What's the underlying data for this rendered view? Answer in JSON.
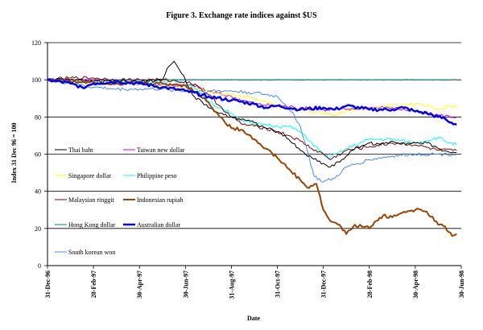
{
  "chart_data": {
    "type": "line",
    "title": "Figure 3. Exchange rate indices against $US",
    "xlabel": "Date",
    "ylabel": "Index 31 Dec 96 = 100",
    "ylim": [
      0,
      120
    ],
    "yticks": [
      0,
      20,
      40,
      60,
      80,
      100,
      120
    ],
    "x_tick_labels": [
      "31-Dec-96",
      "28-Feb-97",
      "30-Apr-97",
      "30-Jun-97",
      "31-Aug-97",
      "31-Oct-97",
      "31-Dec-97",
      "28-Feb-98",
      "30-Apr-98",
      "30-Jun-98"
    ],
    "xlim_months": [
      0,
      18
    ],
    "grid": "horizontal",
    "legend_position": "inside-left",
    "x_unit": "months since 31-Dec-96",
    "series": [
      {
        "name": "Thai baht",
        "color": "#000000",
        "width": 1,
        "points": [
          [
            0,
            100
          ],
          [
            1,
            100
          ],
          [
            2,
            99
          ],
          [
            3,
            99
          ],
          [
            4,
            99
          ],
          [
            5,
            100
          ],
          [
            5.2,
            106
          ],
          [
            5.5,
            110
          ],
          [
            6,
            100
          ],
          [
            6.3,
            92
          ],
          [
            7,
            85
          ],
          [
            7.5,
            82
          ],
          [
            8,
            80
          ],
          [
            8.5,
            79
          ],
          [
            9,
            77
          ],
          [
            9.5,
            74
          ],
          [
            10,
            72
          ],
          [
            10.5,
            68
          ],
          [
            11,
            62
          ],
          [
            11.5,
            58
          ],
          [
            12,
            55
          ],
          [
            12.3,
            53
          ],
          [
            12.8,
            57
          ],
          [
            13,
            59
          ],
          [
            13.5,
            64
          ],
          [
            14,
            66
          ],
          [
            14.5,
            65
          ],
          [
            15,
            67
          ],
          [
            15.5,
            66
          ],
          [
            16,
            66
          ],
          [
            16.5,
            66
          ],
          [
            17,
            63
          ],
          [
            17.5,
            61
          ],
          [
            17.8,
            61
          ]
        ]
      },
      {
        "name": "Taiwan new dollar",
        "color": "#cc00cc",
        "width": 1,
        "points": [
          [
            0,
            100
          ],
          [
            1,
            100
          ],
          [
            2,
            100
          ],
          [
            3,
            99
          ],
          [
            4,
            98
          ],
          [
            5,
            97
          ],
          [
            6,
            97
          ],
          [
            6.5,
            97
          ],
          [
            6.7,
            95
          ],
          [
            7,
            94
          ],
          [
            8,
            91
          ],
          [
            9,
            87
          ],
          [
            10,
            86
          ],
          [
            11,
            85
          ],
          [
            12,
            84
          ],
          [
            13,
            84
          ],
          [
            14,
            85
          ],
          [
            15,
            85
          ],
          [
            16,
            83
          ],
          [
            17,
            81
          ],
          [
            17.8,
            80
          ]
        ]
      },
      {
        "name": "Singapore dollar",
        "color": "#ffff00",
        "width": 1,
        "points": [
          [
            0,
            100
          ],
          [
            1,
            99
          ],
          [
            2,
            98
          ],
          [
            3,
            98
          ],
          [
            4,
            98
          ],
          [
            5,
            97
          ],
          [
            6,
            96
          ],
          [
            7,
            94
          ],
          [
            8,
            92
          ],
          [
            9,
            90
          ],
          [
            10,
            86
          ],
          [
            11,
            84
          ],
          [
            12,
            82
          ],
          [
            12.5,
            81
          ],
          [
            13,
            83
          ],
          [
            14,
            85
          ],
          [
            15,
            86
          ],
          [
            16,
            87
          ],
          [
            17,
            84
          ],
          [
            17.5,
            86
          ],
          [
            17.8,
            85
          ]
        ]
      },
      {
        "name": "Philippine peso",
        "color": "#00ffff",
        "width": 1,
        "points": [
          [
            0,
            100
          ],
          [
            1,
            99
          ],
          [
            2,
            99
          ],
          [
            3,
            99
          ],
          [
            4,
            99
          ],
          [
            5,
            99
          ],
          [
            6,
            99
          ],
          [
            6.5,
            95
          ],
          [
            7,
            88
          ],
          [
            7.5,
            85
          ],
          [
            8,
            82
          ],
          [
            8.5,
            78
          ],
          [
            9,
            76
          ],
          [
            9.5,
            76
          ],
          [
            10,
            75
          ],
          [
            10.5,
            75
          ],
          [
            11,
            72
          ],
          [
            11.5,
            66
          ],
          [
            12,
            60
          ],
          [
            12.3,
            58
          ],
          [
            13,
            63
          ],
          [
            14,
            68
          ],
          [
            15,
            68
          ],
          [
            16,
            66
          ],
          [
            17,
            69
          ],
          [
            17.5,
            66
          ],
          [
            17.8,
            65
          ]
        ]
      },
      {
        "name": "Malaysian ringgit",
        "color": "#800000",
        "width": 1,
        "points": [
          [
            0,
            100
          ],
          [
            1,
            101
          ],
          [
            2,
            101
          ],
          [
            3,
            100
          ],
          [
            4,
            100
          ],
          [
            5,
            100
          ],
          [
            6,
            99
          ],
          [
            6.5,
            97
          ],
          [
            7,
            92
          ],
          [
            7.5,
            86
          ],
          [
            8,
            80
          ],
          [
            8.5,
            76
          ],
          [
            9,
            75
          ],
          [
            9.5,
            74
          ],
          [
            10,
            72
          ],
          [
            10.5,
            70
          ],
          [
            11,
            67
          ],
          [
            11.5,
            63
          ],
          [
            12,
            60
          ],
          [
            12.3,
            57
          ],
          [
            13,
            62
          ],
          [
            14,
            64
          ],
          [
            15,
            66
          ],
          [
            16,
            65
          ],
          [
            17,
            62
          ],
          [
            17.8,
            62
          ]
        ]
      },
      {
        "name": "Indonesian rupiah",
        "color": "#994400",
        "width": 2,
        "points": [
          [
            0,
            100
          ],
          [
            1,
            99
          ],
          [
            2,
            99
          ],
          [
            3,
            98
          ],
          [
            4,
            98
          ],
          [
            5,
            98
          ],
          [
            6,
            97
          ],
          [
            6.5,
            93
          ],
          [
            7,
            88
          ],
          [
            7.5,
            80
          ],
          [
            8,
            74
          ],
          [
            8.5,
            73
          ],
          [
            9,
            68
          ],
          [
            9.5,
            63
          ],
          [
            10,
            58
          ],
          [
            10.5,
            52
          ],
          [
            11,
            46
          ],
          [
            11.3,
            42
          ],
          [
            11.7,
            44
          ],
          [
            12,
            30
          ],
          [
            12.3,
            24
          ],
          [
            12.7,
            22
          ],
          [
            13,
            17
          ],
          [
            13.3,
            21
          ],
          [
            13.6,
            22
          ],
          [
            14,
            20
          ],
          [
            14.3,
            24
          ],
          [
            14.6,
            27
          ],
          [
            15,
            26
          ],
          [
            15.5,
            29
          ],
          [
            16,
            30
          ],
          [
            16.5,
            29
          ],
          [
            17,
            22
          ],
          [
            17.3,
            21
          ],
          [
            17.6,
            16
          ],
          [
            17.8,
            17
          ]
        ]
      },
      {
        "name": "Hong Kong dollar",
        "color": "#008080",
        "width": 1,
        "points": [
          [
            0,
            100
          ],
          [
            3,
            100
          ],
          [
            6,
            100
          ],
          [
            9,
            100
          ],
          [
            12,
            100
          ],
          [
            15,
            100
          ],
          [
            17.8,
            100
          ]
        ]
      },
      {
        "name": "Australian dollar",
        "color": "#0000ff",
        "width": 2.5,
        "points": [
          [
            0,
            100
          ],
          [
            1,
            98
          ],
          [
            1.5,
            96
          ],
          [
            2,
            98
          ],
          [
            3,
            99
          ],
          [
            4,
            98
          ],
          [
            5,
            96
          ],
          [
            6,
            94
          ],
          [
            7,
            91
          ],
          [
            8,
            89
          ],
          [
            9,
            87
          ],
          [
            9.5,
            85
          ],
          [
            10,
            86
          ],
          [
            11,
            84
          ],
          [
            12,
            85
          ],
          [
            12.5,
            84
          ],
          [
            13,
            86
          ],
          [
            14,
            84
          ],
          [
            15,
            84
          ],
          [
            15.5,
            85
          ],
          [
            16,
            83
          ],
          [
            16.5,
            82
          ],
          [
            17,
            80
          ],
          [
            17.3,
            79
          ],
          [
            17.5,
            77
          ],
          [
            17.8,
            76
          ]
        ]
      },
      {
        "name": "South korean won",
        "color": "#4488ff",
        "width": 1,
        "points": [
          [
            0,
            100
          ],
          [
            1,
            98
          ],
          [
            2,
            96
          ],
          [
            3,
            95
          ],
          [
            4,
            95
          ],
          [
            5,
            95
          ],
          [
            6,
            94
          ],
          [
            7,
            94
          ],
          [
            8,
            94
          ],
          [
            9,
            93
          ],
          [
            10,
            91
          ],
          [
            10.5,
            85
          ],
          [
            11,
            75
          ],
          [
            11.3,
            62
          ],
          [
            11.6,
            48
          ],
          [
            12,
            45
          ],
          [
            12.5,
            47
          ],
          [
            13,
            53
          ],
          [
            14,
            57
          ],
          [
            15,
            59
          ],
          [
            16,
            60
          ],
          [
            17,
            60
          ],
          [
            17.8,
            60
          ]
        ]
      }
    ]
  }
}
